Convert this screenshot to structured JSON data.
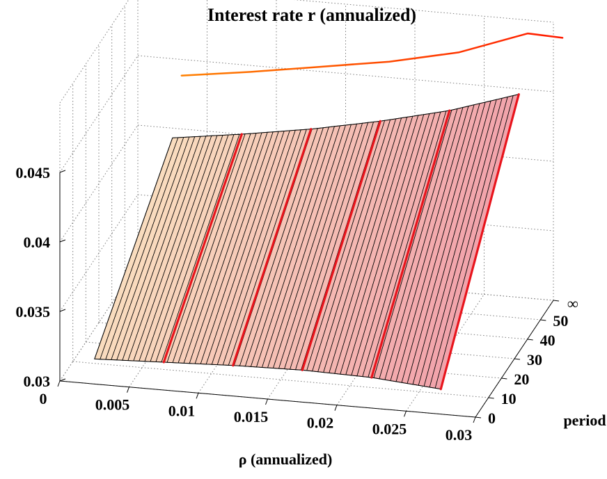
{
  "chart_data": {
    "type": "surface",
    "title": "Interest rate r (annualized)",
    "xlabel": "ρ (annualized)",
    "ylabel": "period",
    "zlabel": "",
    "x_ticks": [
      "0",
      "0.005",
      "0.01",
      "0.015",
      "0.02",
      "0.025",
      "0.03"
    ],
    "y_ticks": [
      "0",
      "10",
      "20",
      "30",
      "40",
      "50",
      "∞"
    ],
    "z_ticks": [
      "0.03",
      "0.035",
      "0.04",
      "0.045"
    ],
    "xlim": [
      0,
      0.03
    ],
    "ylim": [
      0,
      60
    ],
    "zlim": [
      0.03,
      0.045
    ],
    "grid": true,
    "surface_colors": {
      "low_rho": "#f9dcbe",
      "high_rho": "#f2a3ab"
    },
    "x_samples": [
      0.0025,
      0.0075,
      0.0125,
      0.0175,
      0.0225,
      0.0275
    ],
    "surface": {
      "period_0": [
        0.0318,
        0.032,
        0.0322,
        0.0323,
        0.0322,
        0.0318
      ],
      "period_end": [
        0.0393,
        0.04,
        0.0408,
        0.0418,
        0.043,
        0.0446
      ]
    },
    "highlighted_rho": [
      0.0075,
      0.0125,
      0.0175,
      0.0225,
      0.0275
    ],
    "limit_curve": {
      "period": "∞",
      "rho": [
        0.0025,
        0.0075,
        0.0125,
        0.0175,
        0.0225,
        0.0275,
        0.03
      ],
      "r": [
        0.0428,
        0.0435,
        0.0443,
        0.0451,
        0.0462,
        0.048,
        0.0479
      ],
      "colors": [
        "#ff8000",
        "#ff1a00"
      ]
    },
    "highlight_color": "#e8141c"
  }
}
